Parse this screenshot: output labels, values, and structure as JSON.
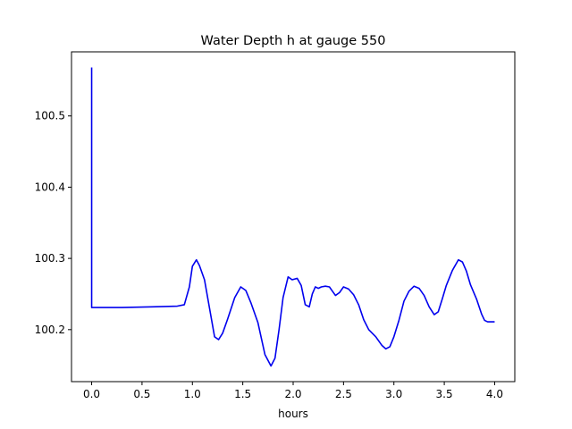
{
  "chart_data": {
    "type": "line",
    "title": "Water Depth h at gauge 550",
    "xlabel": "hours",
    "ylabel": "",
    "xlim": [
      -0.2,
      4.2
    ],
    "ylim": [
      100.127,
      100.59
    ],
    "xticks": [
      0.0,
      0.5,
      1.0,
      1.5,
      2.0,
      2.5,
      3.0,
      3.5,
      4.0
    ],
    "xtick_labels": [
      "0.0",
      "0.5",
      "1.0",
      "1.5",
      "2.0",
      "2.5",
      "3.0",
      "3.5",
      "4.0"
    ],
    "yticks": [
      100.2,
      100.3,
      100.4,
      100.5
    ],
    "ytick_labels": [
      "100.2",
      "100.3",
      "100.4",
      "100.5"
    ],
    "grid": false,
    "legend": "none",
    "series": [
      {
        "color": "#0000ee",
        "x": [
          0.0,
          0.0,
          0.01,
          0.3,
          0.6,
          0.85,
          0.92,
          0.97,
          1.0,
          1.04,
          1.07,
          1.12,
          1.17,
          1.22,
          1.26,
          1.3,
          1.35,
          1.42,
          1.48,
          1.53,
          1.58,
          1.65,
          1.72,
          1.78,
          1.82,
          1.86,
          1.9,
          1.95,
          1.99,
          2.04,
          2.08,
          2.12,
          2.16,
          2.19,
          2.22,
          2.25,
          2.28,
          2.32,
          2.36,
          2.39,
          2.42,
          2.46,
          2.5,
          2.55,
          2.6,
          2.65,
          2.7,
          2.75,
          2.82,
          2.88,
          2.92,
          2.96,
          3.0,
          3.05,
          3.1,
          3.15,
          3.2,
          3.25,
          3.3,
          3.35,
          3.4,
          3.44,
          3.48,
          3.52,
          3.58,
          3.64,
          3.68,
          3.72,
          3.76,
          3.82,
          3.87,
          3.9,
          3.93,
          3.96,
          4.0
        ],
        "y": [
          100.568,
          100.231,
          100.231,
          100.231,
          100.232,
          100.233,
          100.235,
          100.26,
          100.289,
          100.298,
          100.29,
          100.27,
          100.23,
          100.19,
          100.186,
          100.195,
          100.215,
          100.245,
          100.26,
          100.255,
          100.238,
          100.21,
          100.165,
          100.149,
          100.16,
          100.2,
          100.245,
          100.274,
          100.27,
          100.272,
          100.262,
          100.235,
          100.232,
          100.25,
          100.26,
          100.258,
          100.26,
          100.261,
          100.26,
          100.254,
          100.248,
          100.252,
          100.26,
          100.257,
          100.249,
          100.235,
          100.214,
          100.2,
          100.19,
          100.178,
          100.173,
          100.176,
          100.19,
          100.213,
          100.24,
          100.254,
          100.261,
          100.258,
          100.248,
          100.232,
          100.221,
          100.225,
          100.243,
          100.262,
          100.283,
          100.298,
          100.295,
          100.282,
          100.263,
          100.243,
          100.222,
          100.213,
          100.211,
          100.211,
          100.211
        ]
      }
    ]
  }
}
